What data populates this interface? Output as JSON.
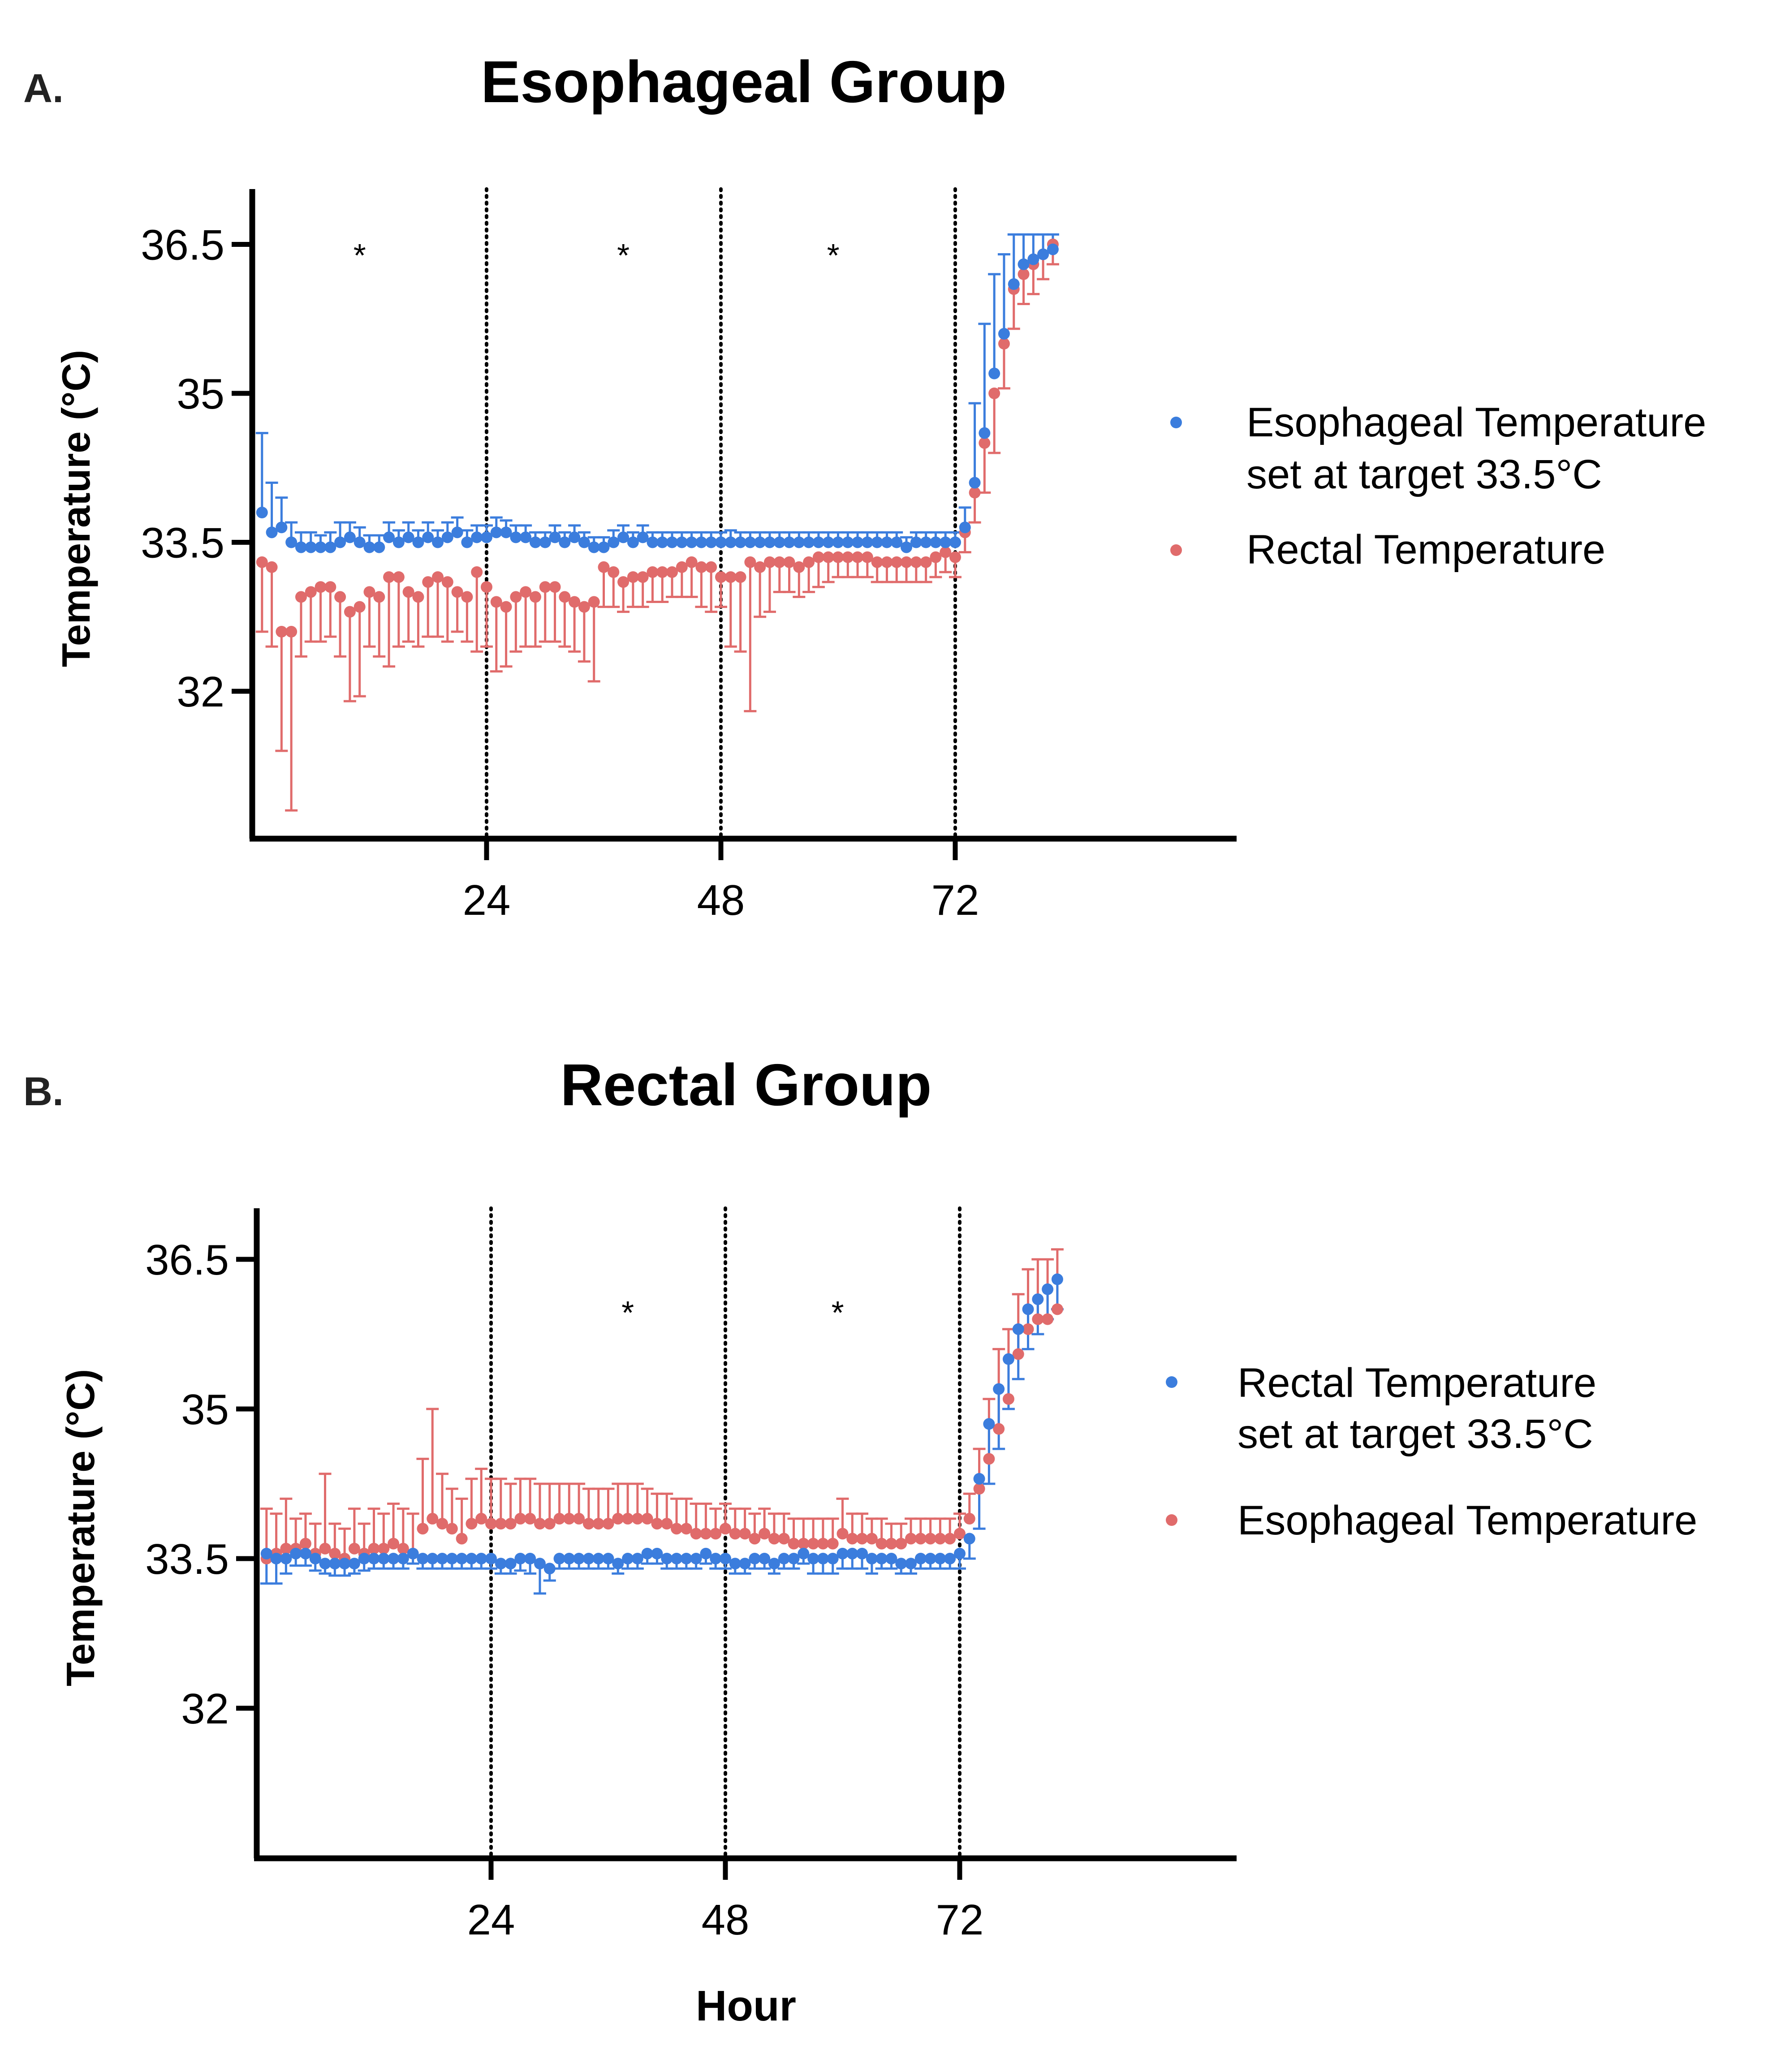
{
  "colors": {
    "blue": "#3b7ddd",
    "red": "#e06b6b",
    "axis": "#000000"
  },
  "x_axis": {
    "label": "Hour",
    "ticks": [
      "24",
      "48",
      "72"
    ]
  },
  "chart_data": [
    {
      "type": "scatter",
      "panel_letter": "A.",
      "title": "Esophageal Group",
      "xlabel": "",
      "ylabel": "Temperature (°C)",
      "xlim": [
        0,
        100
      ],
      "ylim": [
        30.7,
        37.0
      ],
      "xticks": [
        24,
        48,
        72
      ],
      "yticks": [
        32,
        33.5,
        35,
        36.5
      ],
      "ytick_labels": [
        "32",
        "33.5",
        "35",
        "36.5"
      ],
      "vlines": [
        24,
        48,
        72
      ],
      "significance_marks": [
        {
          "x": 11,
          "label": "*"
        },
        {
          "x": 38,
          "label": "*"
        },
        {
          "x": 59.5,
          "label": "*"
        }
      ],
      "legend": "right",
      "series": [
        {
          "name": "Esophageal Temperature set at target 33.5°C",
          "color": "blue",
          "error_bars": "one-sided upward",
          "x": [
            1,
            2,
            3,
            4,
            5,
            6,
            7,
            8,
            9,
            10,
            11,
            12,
            13,
            14,
            15,
            16,
            17,
            18,
            19,
            20,
            21,
            22,
            23,
            24,
            25,
            26,
            27,
            28,
            29,
            30,
            31,
            32,
            33,
            34,
            35,
            36,
            37,
            38,
            39,
            40,
            41,
            42,
            43,
            44,
            45,
            46,
            47,
            48,
            49,
            50,
            51,
            52,
            53,
            54,
            55,
            56,
            57,
            58,
            59,
            60,
            61,
            62,
            63,
            64,
            65,
            66,
            67,
            68,
            69,
            70,
            71,
            72,
            73,
            74,
            75,
            76,
            77,
            78,
            79,
            80,
            81,
            82
          ],
          "y": [
            33.8,
            33.6,
            33.65,
            33.5,
            33.45,
            33.45,
            33.45,
            33.45,
            33.5,
            33.55,
            33.5,
            33.45,
            33.45,
            33.55,
            33.5,
            33.55,
            33.5,
            33.55,
            33.5,
            33.55,
            33.6,
            33.5,
            33.55,
            33.55,
            33.6,
            33.6,
            33.55,
            33.55,
            33.5,
            33.5,
            33.55,
            33.5,
            33.55,
            33.5,
            33.45,
            33.45,
            33.5,
            33.55,
            33.5,
            33.55,
            33.5,
            33.5,
            33.5,
            33.5,
            33.5,
            33.5,
            33.5,
            33.5,
            33.5,
            33.5,
            33.5,
            33.5,
            33.5,
            33.5,
            33.5,
            33.5,
            33.5,
            33.5,
            33.5,
            33.5,
            33.5,
            33.5,
            33.5,
            33.5,
            33.5,
            33.5,
            33.45,
            33.5,
            33.5,
            33.5,
            33.5,
            33.5,
            33.65,
            34.1,
            34.6,
            35.2,
            35.6,
            36.1,
            36.3,
            36.35,
            36.4,
            36.45
          ],
          "err": [
            0.8,
            0.5,
            0.3,
            0.2,
            0.15,
            0.15,
            0.12,
            0.15,
            0.2,
            0.15,
            0.15,
            0.12,
            0.12,
            0.15,
            0.12,
            0.15,
            0.12,
            0.15,
            0.12,
            0.15,
            0.15,
            0.12,
            0.12,
            0.12,
            0.15,
            0.12,
            0.12,
            0.12,
            0.1,
            0.1,
            0.12,
            0.1,
            0.12,
            0.1,
            0.1,
            0.1,
            0.12,
            0.12,
            0.1,
            0.12,
            0.1,
            0.1,
            0.1,
            0.1,
            0.1,
            0.1,
            0.1,
            0.1,
            0.12,
            0.1,
            0.1,
            0.1,
            0.1,
            0.1,
            0.1,
            0.1,
            0.1,
            0.1,
            0.1,
            0.1,
            0.1,
            0.1,
            0.1,
            0.1,
            0.1,
            0.1,
            0.1,
            0.1,
            0.1,
            0.1,
            0.1,
            0.1,
            0.2,
            0.8,
            1.1,
            1.0,
            0.8,
            0.5,
            0.3,
            0.25,
            0.2,
            0.15
          ]
        },
        {
          "name": "Rectal Temperature",
          "color": "red",
          "error_bars": "one-sided downward",
          "x": [
            1,
            2,
            3,
            4,
            5,
            6,
            7,
            8,
            9,
            10,
            11,
            12,
            13,
            14,
            15,
            16,
            17,
            18,
            19,
            20,
            21,
            22,
            23,
            24,
            25,
            26,
            27,
            28,
            29,
            30,
            31,
            32,
            33,
            34,
            35,
            36,
            37,
            38,
            39,
            40,
            41,
            42,
            43,
            44,
            45,
            46,
            47,
            48,
            49,
            50,
            51,
            52,
            53,
            54,
            55,
            56,
            57,
            58,
            59,
            60,
            61,
            62,
            63,
            64,
            65,
            66,
            67,
            68,
            69,
            70,
            71,
            72,
            73,
            74,
            75,
            76,
            77,
            78,
            79,
            80,
            81,
            82
          ],
          "y": [
            33.3,
            33.25,
            32.6,
            32.6,
            32.95,
            33.0,
            33.05,
            33.05,
            32.95,
            32.8,
            32.85,
            33.0,
            32.95,
            33.15,
            33.15,
            33.0,
            32.95,
            33.1,
            33.15,
            33.1,
            33.0,
            32.95,
            33.2,
            33.05,
            32.9,
            32.85,
            32.95,
            33.0,
            32.95,
            33.05,
            33.05,
            32.95,
            32.9,
            32.85,
            32.9,
            33.25,
            33.2,
            33.1,
            33.15,
            33.15,
            33.2,
            33.2,
            33.2,
            33.25,
            33.3,
            33.25,
            33.25,
            33.15,
            33.15,
            33.15,
            33.3,
            33.25,
            33.3,
            33.3,
            33.3,
            33.25,
            33.3,
            33.35,
            33.35,
            33.35,
            33.35,
            33.35,
            33.35,
            33.3,
            33.3,
            33.3,
            33.3,
            33.3,
            33.3,
            33.35,
            33.4,
            33.35,
            33.6,
            34.0,
            34.5,
            35.0,
            35.5,
            36.05,
            36.2,
            36.3,
            36.4,
            36.5
          ],
          "err": [
            0.7,
            0.8,
            1.2,
            1.8,
            0.6,
            0.5,
            0.55,
            0.5,
            0.6,
            0.9,
            0.9,
            0.55,
            0.6,
            0.9,
            0.7,
            0.5,
            0.5,
            0.55,
            0.6,
            0.6,
            0.4,
            0.45,
            0.8,
            0.6,
            0.7,
            0.6,
            0.55,
            0.55,
            0.5,
            0.55,
            0.55,
            0.5,
            0.5,
            0.55,
            0.8,
            0.4,
            0.35,
            0.3,
            0.3,
            0.3,
            0.3,
            0.3,
            0.25,
            0.3,
            0.35,
            0.4,
            0.45,
            0.3,
            0.7,
            0.75,
            1.5,
            0.5,
            0.5,
            0.3,
            0.3,
            0.3,
            0.3,
            0.3,
            0.25,
            0.2,
            0.2,
            0.2,
            0.2,
            0.2,
            0.2,
            0.2,
            0.2,
            0.2,
            0.2,
            0.2,
            0.2,
            0.2,
            0.2,
            0.3,
            0.5,
            0.6,
            0.45,
            0.4,
            0.3,
            0.3,
            0.25,
            0.2
          ]
        }
      ]
    },
    {
      "type": "scatter",
      "panel_letter": "B.",
      "title": "Rectal Group",
      "xlabel": "Hour",
      "ylabel": "Temperature (°C)",
      "xlim": [
        0,
        100
      ],
      "ylim": [
        30.7,
        37.0
      ],
      "xticks": [
        24,
        48,
        72
      ],
      "yticks": [
        32,
        33.5,
        35,
        36.5
      ],
      "ytick_labels": [
        "32",
        "33.5",
        "35",
        "36.5"
      ],
      "vlines": [
        24,
        48,
        72
      ],
      "significance_marks": [
        {
          "x": 38,
          "label": "*"
        },
        {
          "x": 59.5,
          "label": "*"
        }
      ],
      "legend": "right",
      "series": [
        {
          "name": "Rectal Temperature set at target 33.5°C",
          "color": "blue",
          "error_bars": "one-sided downward",
          "x": [
            1,
            2,
            3,
            4,
            5,
            6,
            7,
            8,
            9,
            10,
            11,
            12,
            13,
            14,
            15,
            16,
            17,
            18,
            19,
            20,
            21,
            22,
            23,
            24,
            25,
            26,
            27,
            28,
            29,
            30,
            31,
            32,
            33,
            34,
            35,
            36,
            37,
            38,
            39,
            40,
            41,
            42,
            43,
            44,
            45,
            46,
            47,
            48,
            49,
            50,
            51,
            52,
            53,
            54,
            55,
            56,
            57,
            58,
            59,
            60,
            61,
            62,
            63,
            64,
            65,
            66,
            67,
            68,
            69,
            70,
            71,
            72,
            73,
            74,
            75,
            76,
            77,
            78,
            79,
            80,
            81,
            82
          ],
          "y": [
            33.55,
            33.5,
            33.5,
            33.55,
            33.55,
            33.5,
            33.45,
            33.45,
            33.45,
            33.45,
            33.5,
            33.5,
            33.5,
            33.5,
            33.5,
            33.55,
            33.5,
            33.5,
            33.5,
            33.5,
            33.5,
            33.5,
            33.5,
            33.5,
            33.45,
            33.45,
            33.5,
            33.5,
            33.45,
            33.4,
            33.5,
            33.5,
            33.5,
            33.5,
            33.5,
            33.5,
            33.45,
            33.5,
            33.5,
            33.55,
            33.55,
            33.5,
            33.5,
            33.5,
            33.5,
            33.55,
            33.5,
            33.5,
            33.45,
            33.45,
            33.5,
            33.5,
            33.45,
            33.5,
            33.5,
            33.55,
            33.5,
            33.5,
            33.5,
            33.55,
            33.55,
            33.55,
            33.5,
            33.5,
            33.5,
            33.45,
            33.45,
            33.5,
            33.5,
            33.5,
            33.5,
            33.55,
            33.7,
            34.3,
            34.85,
            35.2,
            35.5,
            35.8,
            36.0,
            36.1,
            36.2,
            36.3
          ],
          "err": [
            0.3,
            0.25,
            0.15,
            0.12,
            0.12,
            0.12,
            0.1,
            0.12,
            0.12,
            0.1,
            0.12,
            0.1,
            0.1,
            0.1,
            0.1,
            0.1,
            0.1,
            0.1,
            0.1,
            0.1,
            0.1,
            0.1,
            0.1,
            0.1,
            0.1,
            0.1,
            0.12,
            0.15,
            0.3,
            0.12,
            0.1,
            0.1,
            0.1,
            0.1,
            0.1,
            0.1,
            0.1,
            0.1,
            0.1,
            0.1,
            0.1,
            0.1,
            0.1,
            0.1,
            0.1,
            0.1,
            0.1,
            0.1,
            0.1,
            0.1,
            0.1,
            0.1,
            0.1,
            0.1,
            0.1,
            0.1,
            0.15,
            0.15,
            0.15,
            0.15,
            0.15,
            0.15,
            0.15,
            0.1,
            0.1,
            0.1,
            0.1,
            0.1,
            0.1,
            0.1,
            0.1,
            0.15,
            0.2,
            0.5,
            0.6,
            0.6,
            0.5,
            0.5,
            0.4,
            0.35,
            0.3,
            0.3
          ]
        },
        {
          "name": "Esophageal Temperature",
          "color": "red",
          "error_bars": "one-sided upward",
          "x": [
            1,
            2,
            3,
            4,
            5,
            6,
            7,
            8,
            9,
            10,
            11,
            12,
            13,
            14,
            15,
            16,
            17,
            18,
            19,
            20,
            21,
            22,
            23,
            24,
            25,
            26,
            27,
            28,
            29,
            30,
            31,
            32,
            33,
            34,
            35,
            36,
            37,
            38,
            39,
            40,
            41,
            42,
            43,
            44,
            45,
            46,
            47,
            48,
            49,
            50,
            51,
            52,
            53,
            54,
            55,
            56,
            57,
            58,
            59,
            60,
            61,
            62,
            63,
            64,
            65,
            66,
            67,
            68,
            69,
            70,
            71,
            72,
            73,
            74,
            75,
            76,
            77,
            78,
            79,
            80,
            81,
            82
          ],
          "y": [
            33.5,
            33.55,
            33.6,
            33.6,
            33.65,
            33.55,
            33.6,
            33.55,
            33.5,
            33.6,
            33.55,
            33.6,
            33.6,
            33.65,
            33.6,
            33.55,
            33.8,
            33.9,
            33.85,
            33.8,
            33.7,
            33.85,
            33.9,
            33.85,
            33.85,
            33.85,
            33.9,
            33.9,
            33.85,
            33.85,
            33.9,
            33.9,
            33.9,
            33.85,
            33.85,
            33.85,
            33.9,
            33.9,
            33.9,
            33.9,
            33.85,
            33.85,
            33.8,
            33.8,
            33.75,
            33.75,
            33.75,
            33.8,
            33.75,
            33.75,
            33.7,
            33.75,
            33.7,
            33.7,
            33.65,
            33.65,
            33.65,
            33.65,
            33.65,
            33.75,
            33.7,
            33.7,
            33.7,
            33.65,
            33.65,
            33.65,
            33.7,
            33.7,
            33.7,
            33.7,
            33.7,
            33.75,
            33.9,
            34.2,
            34.5,
            34.8,
            35.1,
            35.55,
            35.8,
            35.9,
            35.9,
            36.0
          ],
          "err": [
            0.5,
            0.4,
            0.5,
            0.3,
            0.3,
            0.3,
            0.75,
            0.3,
            0.3,
            0.4,
            0.3,
            0.4,
            0.35,
            0.4,
            0.4,
            0.4,
            0.7,
            1.1,
            0.5,
            0.4,
            0.4,
            0.45,
            0.5,
            0.45,
            0.45,
            0.4,
            0.4,
            0.4,
            0.4,
            0.4,
            0.35,
            0.35,
            0.35,
            0.35,
            0.35,
            0.35,
            0.35,
            0.35,
            0.35,
            0.3,
            0.3,
            0.3,
            0.3,
            0.3,
            0.3,
            0.3,
            0.25,
            0.25,
            0.25,
            0.25,
            0.25,
            0.25,
            0.25,
            0.25,
            0.25,
            0.25,
            0.25,
            0.25,
            0.25,
            0.35,
            0.25,
            0.25,
            0.2,
            0.25,
            0.2,
            0.2,
            0.2,
            0.2,
            0.2,
            0.2,
            0.2,
            0.2,
            0.25,
            0.4,
            0.6,
            0.8,
            0.7,
            0.6,
            0.6,
            0.6,
            0.6,
            0.6
          ]
        }
      ]
    }
  ]
}
